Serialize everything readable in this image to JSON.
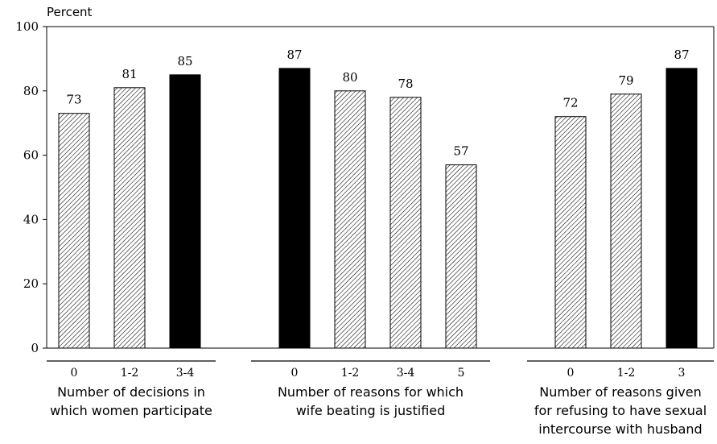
{
  "chart_data": {
    "type": "bar",
    "ylabel": "Percent",
    "ylim": [
      0,
      100
    ],
    "yticks": [
      0,
      20,
      40,
      60,
      80,
      100
    ],
    "grid": false,
    "legend": "none",
    "colors": {
      "solid": "#000000",
      "hatched": "#ffffff",
      "hatch_line": "#000000"
    },
    "groups": [
      {
        "label_lines": [
          "Number of decisions in",
          "which women participate"
        ],
        "categories": [
          "0",
          "1-2",
          "3-4"
        ],
        "values": [
          73,
          81,
          85
        ],
        "styles": [
          "hatched",
          "hatched",
          "solid"
        ]
      },
      {
        "label_lines": [
          "Number of reasons for which",
          "wife beating is justified"
        ],
        "categories": [
          "0",
          "1-2",
          "3-4",
          "5"
        ],
        "values": [
          87,
          80,
          78,
          57
        ],
        "styles": [
          "solid",
          "hatched",
          "hatched",
          "hatched"
        ]
      },
      {
        "label_lines": [
          "Number of reasons given",
          "for refusing to have sexual",
          "intercourse with husband"
        ],
        "categories": [
          "0",
          "1-2",
          "3"
        ],
        "values": [
          72,
          79,
          87
        ],
        "styles": [
          "hatched",
          "hatched",
          "solid"
        ]
      }
    ]
  }
}
